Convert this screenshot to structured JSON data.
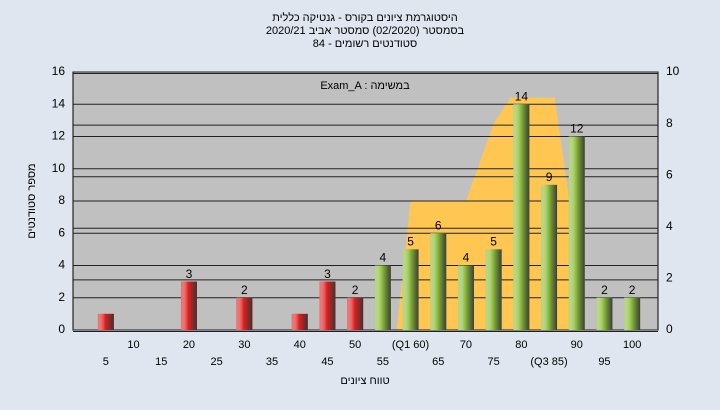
{
  "chart_data": {
    "type": "bar",
    "title": "היסטוגרמת ציונים בקורס - גנטיקה כללית",
    "subtitle": "בסמסטר  (02/2020)  סמסטר אביב 2020/21",
    "subtitle2": "סטודנטים רשומים - 84",
    "annotation": "Exam_A : במשימה",
    "x_label": "טווח ציונים",
    "y_label": "מספר סטודנטים",
    "categories": [
      "5",
      "10",
      "15",
      "20",
      "25",
      "30",
      "35",
      "40",
      "45",
      "50",
      "55",
      "(Q1 60)",
      "65",
      "70",
      "75",
      "80",
      "(Q3 85)",
      "90",
      "95",
      "100"
    ],
    "values": [
      1,
      0,
      0,
      3,
      0,
      2,
      0,
      1,
      3,
      2,
      4,
      5,
      6,
      4,
      5,
      14,
      9,
      12,
      2,
      2
    ],
    "value_labels": [
      null,
      null,
      null,
      "3",
      null,
      "2",
      null,
      null,
      "3",
      "2",
      "4",
      "5",
      "6",
      "4",
      "5",
      "14",
      "9",
      "12",
      "2",
      "2"
    ],
    "colors": [
      "#e02020",
      "#e02020",
      "#e02020",
      "#e02020",
      "#e02020",
      "#e02020",
      "#e02020",
      "#e02020",
      "#e02020",
      "#e02020",
      "#8cbd3c",
      "#8cbd3c",
      "#8cbd3c",
      "#8cbd3c",
      "#8cbd3c",
      "#8cbd3c",
      "#8cbd3c",
      "#8cbd3c",
      "#8cbd3c",
      "#8cbd3c"
    ],
    "area": {
      "color": "#ffc752",
      "axis": "y2",
      "x": [
        57.5,
        60,
        70,
        75,
        78,
        86,
        90
      ],
      "values": [
        0,
        5,
        5,
        8,
        9,
        9,
        3
      ]
    },
    "ylim": [
      0,
      16
    ],
    "yticks": [
      0,
      2,
      4,
      6,
      8,
      10,
      12,
      14,
      16
    ],
    "y2lim": [
      0,
      10
    ],
    "y2ticks": [
      0,
      2,
      4,
      6,
      8,
      10
    ],
    "grid": true
  }
}
